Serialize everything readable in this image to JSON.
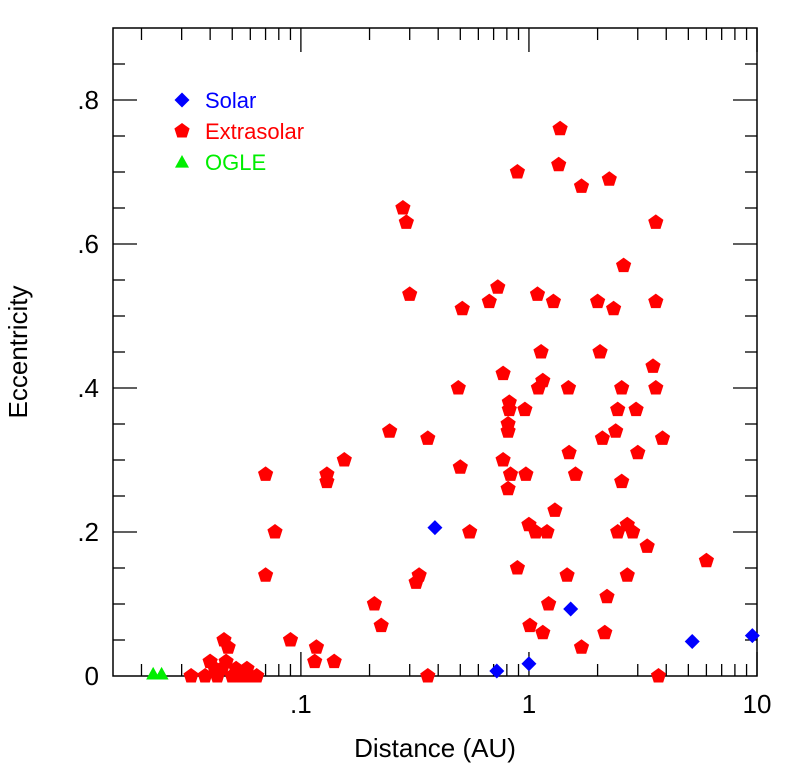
{
  "chart_data": {
    "type": "scatter",
    "title": "",
    "xlabel": "Distance (AU)",
    "ylabel": "Eccentricity",
    "xscale": "log",
    "xlim": [
      0.015,
      10
    ],
    "ylim": [
      0,
      0.9
    ],
    "grid": false,
    "legend_position": "top-left",
    "x_ticks": [
      {
        "value": 0.1,
        "label": ".1"
      },
      {
        "value": 1,
        "label": "1"
      },
      {
        "value": 10,
        "label": "10"
      }
    ],
    "y_ticks": [
      {
        "value": 0,
        "label": "0"
      },
      {
        "value": 0.2,
        "label": ".2"
      },
      {
        "value": 0.4,
        "label": ".4"
      },
      {
        "value": 0.6,
        "label": ".6"
      },
      {
        "value": 0.8,
        "label": ".8"
      }
    ],
    "series": [
      {
        "name": "Solar",
        "color": "#0000ff",
        "marker": "diamond",
        "points": [
          [
            0.387,
            0.206
          ],
          [
            0.723,
            0.007
          ],
          [
            1.0,
            0.017
          ],
          [
            1.524,
            0.093
          ],
          [
            5.2,
            0.048
          ],
          [
            9.54,
            0.056
          ]
        ]
      },
      {
        "name": "Extrasolar",
        "color": "#ff0000",
        "marker": "pentagon",
        "points": [
          [
            0.033,
            0.0
          ],
          [
            0.038,
            0.0
          ],
          [
            0.04,
            0.02
          ],
          [
            0.042,
            0.01
          ],
          [
            0.043,
            0.0
          ],
          [
            0.045,
            0.01
          ],
          [
            0.046,
            0.05
          ],
          [
            0.047,
            0.02
          ],
          [
            0.048,
            0.04
          ],
          [
            0.05,
            0.0
          ],
          [
            0.052,
            0.01
          ],
          [
            0.055,
            0.0
          ],
          [
            0.058,
            0.01
          ],
          [
            0.06,
            0.0
          ],
          [
            0.064,
            0.0
          ],
          [
            0.07,
            0.28
          ],
          [
            0.07,
            0.14
          ],
          [
            0.077,
            0.2
          ],
          [
            0.09,
            0.05
          ],
          [
            0.115,
            0.02
          ],
          [
            0.117,
            0.04
          ],
          [
            0.13,
            0.28
          ],
          [
            0.13,
            0.27
          ],
          [
            0.14,
            0.02
          ],
          [
            0.155,
            0.3
          ],
          [
            0.21,
            0.1
          ],
          [
            0.225,
            0.07
          ],
          [
            0.245,
            0.34
          ],
          [
            0.28,
            0.65
          ],
          [
            0.29,
            0.63
          ],
          [
            0.3,
            0.53
          ],
          [
            0.32,
            0.13
          ],
          [
            0.33,
            0.14
          ],
          [
            0.36,
            0.0
          ],
          [
            0.36,
            0.33
          ],
          [
            0.49,
            0.4
          ],
          [
            0.5,
            0.29
          ],
          [
            0.51,
            0.51
          ],
          [
            0.55,
            0.2
          ],
          [
            0.67,
            0.52
          ],
          [
            0.73,
            0.54
          ],
          [
            0.77,
            0.42
          ],
          [
            0.77,
            0.3
          ],
          [
            0.81,
            0.26
          ],
          [
            0.81,
            0.34
          ],
          [
            0.81,
            0.35
          ],
          [
            0.82,
            0.37
          ],
          [
            0.82,
            0.38
          ],
          [
            0.83,
            0.28
          ],
          [
            0.89,
            0.15
          ],
          [
            0.89,
            0.7
          ],
          [
            0.96,
            0.37
          ],
          [
            0.97,
            0.28
          ],
          [
            1.0,
            0.21
          ],
          [
            1.01,
            0.07
          ],
          [
            1.07,
            0.2
          ],
          [
            1.09,
            0.53
          ],
          [
            1.1,
            0.4
          ],
          [
            1.13,
            0.45
          ],
          [
            1.15,
            0.41
          ],
          [
            1.15,
            0.06
          ],
          [
            1.2,
            0.2
          ],
          [
            1.22,
            0.1
          ],
          [
            1.28,
            0.52
          ],
          [
            1.3,
            0.23
          ],
          [
            1.35,
            0.71
          ],
          [
            1.37,
            0.76
          ],
          [
            1.47,
            0.14
          ],
          [
            1.49,
            0.4
          ],
          [
            1.5,
            0.31
          ],
          [
            1.6,
            0.28
          ],
          [
            1.7,
            0.04
          ],
          [
            1.7,
            0.68
          ],
          [
            2.0,
            0.52
          ],
          [
            2.05,
            0.45
          ],
          [
            2.1,
            0.33
          ],
          [
            2.15,
            0.06
          ],
          [
            2.2,
            0.11
          ],
          [
            2.25,
            0.69
          ],
          [
            2.35,
            0.51
          ],
          [
            2.4,
            0.34
          ],
          [
            2.45,
            0.37
          ],
          [
            2.45,
            0.2
          ],
          [
            2.55,
            0.27
          ],
          [
            2.55,
            0.4
          ],
          [
            2.6,
            0.57
          ],
          [
            2.7,
            0.14
          ],
          [
            2.7,
            0.21
          ],
          [
            2.85,
            0.2
          ],
          [
            2.95,
            0.37
          ],
          [
            3.0,
            0.31
          ],
          [
            3.3,
            0.18
          ],
          [
            3.5,
            0.43
          ],
          [
            3.6,
            0.4
          ],
          [
            3.6,
            0.52
          ],
          [
            3.6,
            0.63
          ],
          [
            3.7,
            0.0
          ],
          [
            3.85,
            0.33
          ],
          [
            6.0,
            0.16
          ]
        ]
      },
      {
        "name": "OGLE",
        "color": "#00ee00",
        "marker": "triangle",
        "points": [
          [
            0.0225,
            0.003
          ],
          [
            0.0245,
            0.003
          ]
        ]
      }
    ]
  }
}
